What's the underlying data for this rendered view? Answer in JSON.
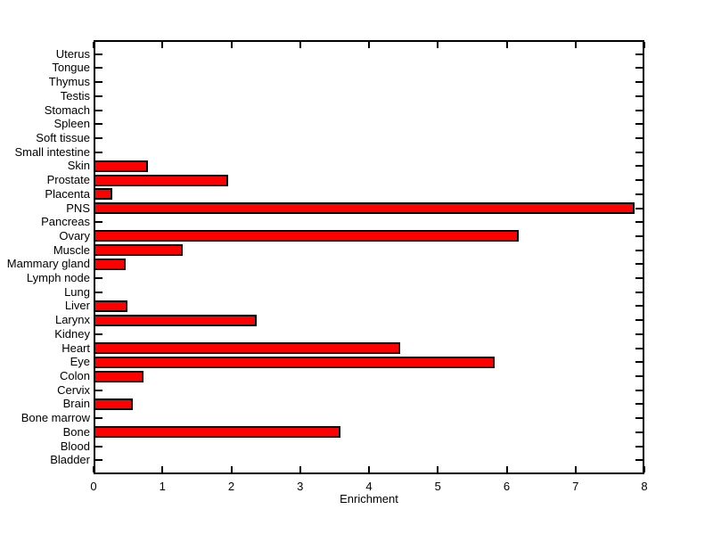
{
  "figure": {
    "background": "#FFFFFF"
  },
  "chart_data": {
    "type": "bar",
    "orientation": "horizontal",
    "title": "",
    "xlabel": "Enrichment",
    "ylabel": "",
    "category_order": "top-to-bottom",
    "categories": [
      "Uterus",
      "Tongue",
      "Thymus",
      "Testis",
      "Stomach",
      "Spleen",
      "Soft tissue",
      "Small intestine",
      "Skin",
      "Prostate",
      "Placenta",
      "PNS",
      "Pancreas",
      "Ovary",
      "Muscle",
      "Mammary gland",
      "Lymph node",
      "Lung",
      "Liver",
      "Larynx",
      "Kidney",
      "Heart",
      "Eye",
      "Colon",
      "Cervix",
      "Brain",
      "Bone marrow",
      "Bone",
      "Blood",
      "Bladder"
    ],
    "values": [
      0,
      0,
      0,
      0,
      0,
      0,
      0,
      0,
      0.79,
      1.96,
      0.27,
      7.86,
      0,
      6.18,
      1.3,
      0.46,
      0,
      0,
      0.49,
      2.37,
      0,
      4.45,
      5.83,
      0.72,
      0,
      0.57,
      0,
      3.58,
      0,
      0
    ],
    "xlim": [
      0,
      8
    ],
    "x_ticks": [
      "0",
      "1",
      "2",
      "3",
      "4",
      "5",
      "6",
      "7",
      "8"
    ],
    "bar_color": "#FF0000",
    "bar_edge_color": "#000000",
    "axis_color": "#000000",
    "grid": false,
    "legend": null
  }
}
